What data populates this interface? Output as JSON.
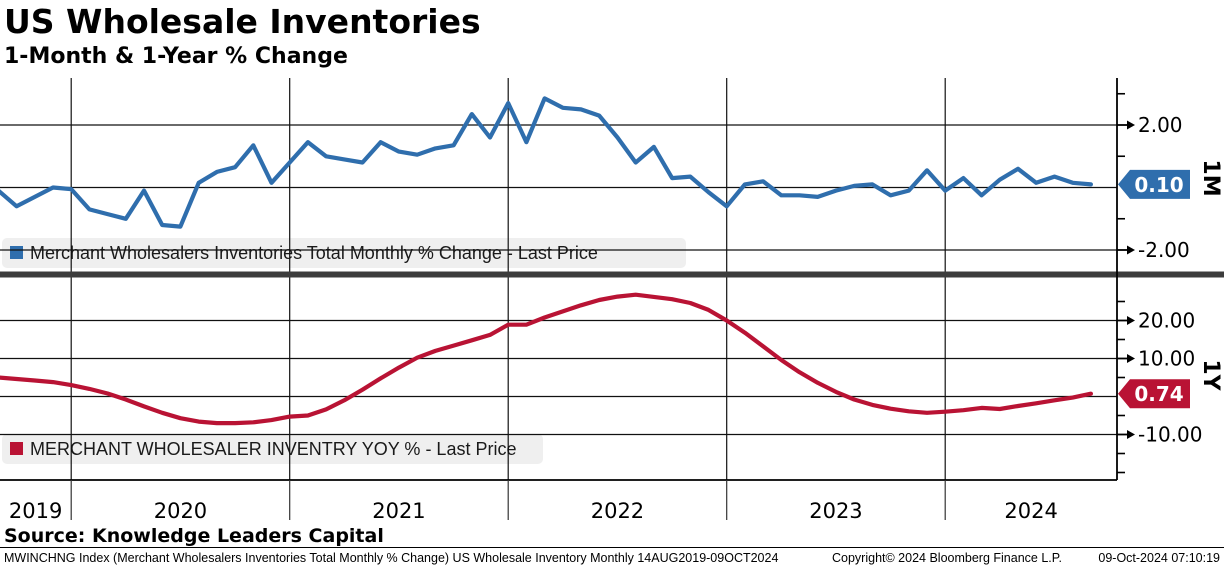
{
  "header": {
    "title": "US Wholesale Inventories",
    "subtitle": "1-Month & 1-Year % Change"
  },
  "chart_data": [
    {
      "type": "line",
      "panel": "top",
      "axis_label": "1M",
      "series_name": "Merchant Wholesalers Inventories Total Monthly % Change - Last Price",
      "color": "#2f6ead",
      "start": "2019-09",
      "freq": "monthly",
      "values": [
        -0.1,
        -0.6,
        -0.3,
        0.0,
        -0.05,
        -0.7,
        -0.85,
        -1.0,
        -0.1,
        -1.2,
        -1.25,
        0.15,
        0.5,
        0.65,
        1.35,
        0.15,
        0.8,
        1.45,
        1.0,
        0.9,
        0.8,
        1.45,
        1.15,
        1.05,
        1.25,
        1.35,
        2.35,
        1.6,
        2.7,
        1.45,
        2.85,
        2.55,
        2.5,
        2.3,
        1.6,
        0.8,
        1.3,
        0.3,
        0.35,
        -0.15,
        -0.6,
        0.1,
        0.2,
        -0.25,
        -0.25,
        -0.3,
        -0.1,
        0.05,
        0.1,
        -0.25,
        -0.1,
        0.55,
        -0.1,
        0.3,
        -0.25,
        0.25,
        0.6,
        0.15,
        0.35,
        0.15,
        0.1
      ],
      "last_price": "0.10",
      "ylim": [
        -2.7,
        3.5
      ],
      "yticks_labeled": [
        {
          "value": 2,
          "label": "2.00"
        },
        {
          "value": -2,
          "label": "-2.00"
        }
      ],
      "yticks_minor": [
        3,
        1,
        -1
      ],
      "gridlines_y": [
        2,
        0,
        -2
      ],
      "grid": true
    },
    {
      "type": "line",
      "panel": "bottom",
      "axis_label": "1Y",
      "series_name": "MERCHANT WHOLESALER INVENTRY YOY % - Last Price",
      "color": "#b91334",
      "start": "2019-09",
      "freq": "monthly",
      "values": [
        5.0,
        4.6,
        4.2,
        3.8,
        3.0,
        2.0,
        0.8,
        -0.8,
        -2.6,
        -4.3,
        -5.7,
        -6.6,
        -7.0,
        -7.0,
        -6.8,
        -6.2,
        -5.3,
        -5.0,
        -3.4,
        -1.0,
        1.8,
        4.8,
        7.6,
        10.2,
        12.0,
        13.4,
        14.8,
        16.2,
        18.9,
        18.9,
        20.8,
        22.4,
        24.0,
        25.4,
        26.3,
        26.8,
        26.2,
        25.6,
        24.6,
        22.8,
        20.0,
        16.8,
        13.2,
        9.6,
        6.4,
        3.6,
        1.2,
        -0.8,
        -2.2,
        -3.2,
        -3.9,
        -4.3,
        -4.0,
        -3.6,
        -3.0,
        -3.3,
        -2.5,
        -1.8,
        -1.0,
        -0.3,
        0.74
      ],
      "last_price": "0.74",
      "ylim": [
        -22.5,
        31.2
      ],
      "yticks_labeled": [
        {
          "value": 20,
          "label": "20.00"
        },
        {
          "value": 10,
          "label": "10.00"
        },
        {
          "value": -10,
          "label": "-10.00"
        }
      ],
      "yticks_minor": [
        25,
        15,
        5,
        -5,
        -15,
        -20
      ],
      "gridlines_y": [
        20,
        10,
        0,
        -10
      ],
      "grid": true
    }
  ],
  "x_axis": {
    "year_gridlines": [
      2020,
      2021,
      2022,
      2023,
      2024
    ],
    "labels": [
      "2019",
      "2020",
      "2021",
      "2022",
      "2023",
      "2024"
    ],
    "range_note": "14AUG2019-09OCT2024"
  },
  "legends": [
    {
      "swatch_color": "#2f6ead",
      "text": "Merchant Wholesalers Inventories Total Monthly % Change - Last Price"
    },
    {
      "swatch_color": "#b91334",
      "text": "MERCHANT WHOLESALER INVENTRY YOY % - Last Price"
    }
  ],
  "footer": {
    "source": "Source: Knowledge Leaders Capital",
    "meta_left": "MWINCHNG Index (Merchant Wholesalers Inventories Total Monthly % Change) US Wholesale Inventory  Monthly 14AUG2019-09OCT2024",
    "copyright": "Copyright© 2024 Bloomberg Finance L.P.",
    "timestamp": "09-Oct-2024 07:10:19"
  }
}
